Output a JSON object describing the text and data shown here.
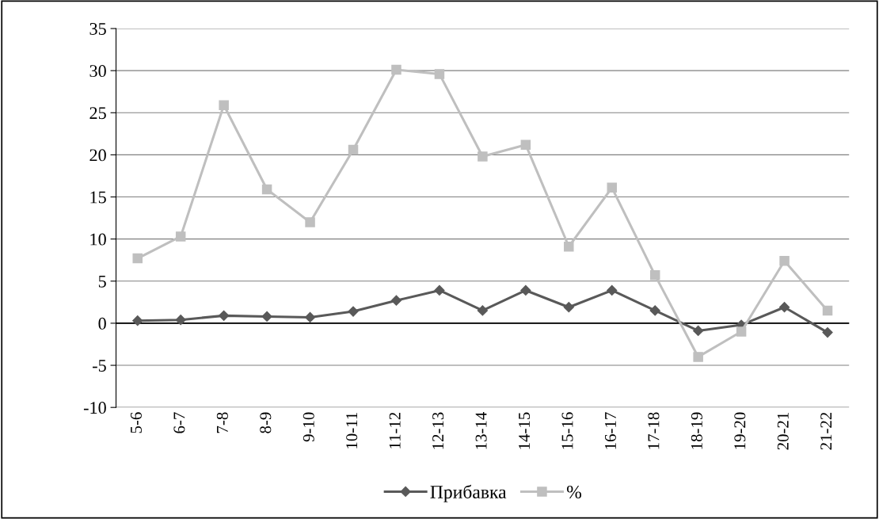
{
  "chart_data": {
    "type": "line",
    "categories": [
      "5-6",
      "6-7",
      "7-8",
      "8-9",
      "9-10",
      "10-11",
      "11-12",
      "12-13",
      "13-14",
      "14-15",
      "15-16",
      "16-17",
      "17-18",
      "18-19",
      "19-20",
      "20-21",
      "21-22"
    ],
    "series": [
      {
        "name": "Прибавка",
        "color": "#595959",
        "marker": "diamond",
        "values": [
          0.3,
          0.4,
          0.9,
          0.8,
          0.7,
          1.4,
          2.7,
          3.9,
          1.5,
          3.9,
          1.9,
          3.9,
          1.5,
          -0.9,
          -0.2,
          1.9,
          -1.1
        ]
      },
      {
        "name": "%",
        "color": "#bfbfbf",
        "marker": "square",
        "values": [
          7.7,
          10.3,
          25.9,
          15.9,
          12.0,
          20.6,
          30.1,
          29.6,
          19.8,
          21.2,
          9.1,
          16.1,
          5.7,
          -4.0,
          -1.0,
          7.4,
          1.5
        ]
      }
    ],
    "ylim": [
      -10,
      35
    ],
    "yticks": [
      -10,
      -5,
      0,
      5,
      10,
      15,
      20,
      25,
      30,
      35
    ],
    "grid": "y",
    "legend": "bottom",
    "line_style": "solid"
  }
}
